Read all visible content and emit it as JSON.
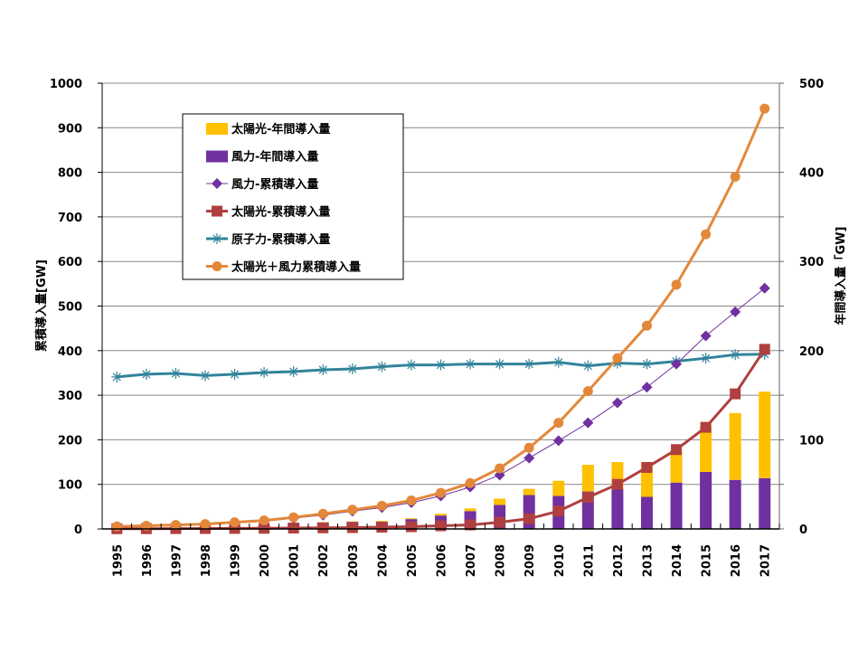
{
  "chart_data": {
    "type": "bar+line",
    "title": "",
    "categories": [
      "1995",
      "1996",
      "1997",
      "1998",
      "1999",
      "2000",
      "2001",
      "2002",
      "2003",
      "2004",
      "2005",
      "2006",
      "2007",
      "2008",
      "2009",
      "2010",
      "2011",
      "2012",
      "2013",
      "2014",
      "2015",
      "2016",
      "2017"
    ],
    "y_left": {
      "label": "累積導入量[GW]",
      "ylim": [
        0,
        1000
      ],
      "ticks": [
        "0",
        "100",
        "200",
        "300",
        "400",
        "500",
        "600",
        "700",
        "800",
        "900",
        "1000"
      ]
    },
    "y_right": {
      "label": "年間導入量「GW]",
      "ylim": [
        0,
        500
      ],
      "ticks": [
        "0",
        "100",
        "200",
        "300",
        "400",
        "500"
      ]
    },
    "grid": true,
    "legend_position": "top-left-inside",
    "bar_series": [
      {
        "name": "風力-年間導入量",
        "axis": "right",
        "color": "#7030A0",
        "values": [
          1.3,
          1.3,
          1.5,
          2.5,
          3.5,
          4,
          6.5,
          7,
          8,
          8,
          11,
          15,
          20,
          27,
          38,
          37,
          42,
          45,
          36,
          52,
          64,
          55,
          57
        ]
      },
      {
        "name": "太陽光-年間導入量",
        "axis": "right",
        "color": "#FFC000",
        "values": [
          0,
          0,
          0,
          0,
          0,
          0,
          0,
          0.5,
          0.5,
          1,
          1,
          2,
          3,
          7,
          7,
          17,
          30,
          30,
          39,
          36,
          51,
          75,
          97
        ]
      }
    ],
    "line_series": [
      {
        "name": "風力-累積導入量",
        "axis": "left",
        "color": "#7030A0",
        "marker": "diamond",
        "values": [
          5,
          6,
          8,
          10,
          14,
          17,
          24,
          31,
          40,
          48,
          59,
          74,
          94,
          121,
          159,
          198,
          238,
          283,
          318,
          370,
          433,
          487,
          540
        ]
      },
      {
        "name": "太陽光-累積導入量",
        "axis": "left",
        "color": "#B0403F",
        "marker": "square",
        "values": [
          0.5,
          0.6,
          0.8,
          1,
          1.2,
          1.5,
          2,
          2.5,
          3,
          4,
          5,
          7,
          9,
          15,
          23,
          40,
          71,
          100,
          138,
          178,
          228,
          303,
          403
        ]
      },
      {
        "name": "原子力-累積導入量",
        "axis": "left",
        "color": "#31849B",
        "marker": "asterisk",
        "values": [
          341,
          347,
          349,
          344,
          347,
          351,
          353,
          357,
          359,
          364,
          368,
          368,
          370,
          370,
          370,
          374,
          366,
          372,
          370,
          376,
          383,
          391,
          392
        ]
      },
      {
        "name": "太陽光＋風力累積導入量",
        "axis": "left",
        "color": "#E3883A",
        "marker": "circle",
        "values": [
          5.5,
          7,
          9,
          11,
          15,
          19,
          26,
          34,
          43,
          52,
          64,
          81,
          103,
          136,
          182,
          238,
          309,
          383,
          456,
          548,
          661,
          790,
          943
        ]
      }
    ]
  }
}
